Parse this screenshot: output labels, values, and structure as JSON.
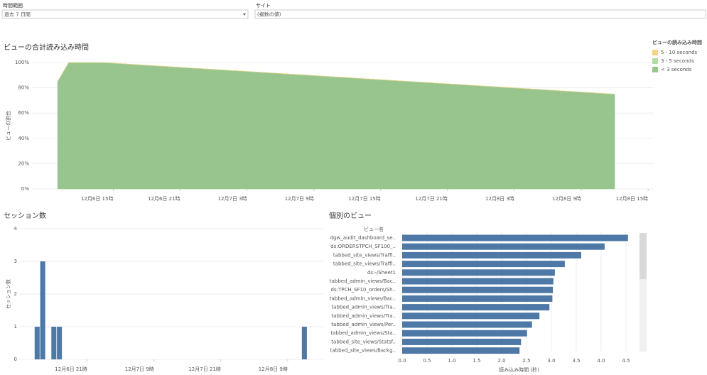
{
  "filters": [
    {
      "label": "時間範囲",
      "value": "過去 7 日間"
    },
    {
      "label": "サイト",
      "value": "(複数の値)"
    }
  ],
  "chart_data": [
    {
      "type": "area",
      "title": "ビューの合計読み込み時間",
      "ylabel": "ビューの割合",
      "x": [
        10,
        11,
        14,
        60
      ],
      "series": [
        {
          "name": "< 3 seconds",
          "color": "#98c58e",
          "values": [
            85,
            100,
            100,
            75
          ]
        },
        {
          "name": "3 - 5 seconds",
          "color": "#b6dba8",
          "values": [
            0,
            0,
            0,
            0
          ]
        },
        {
          "name": "5 - 10 seconds",
          "color": "#f1d581",
          "values": [
            0,
            0,
            0,
            0
          ]
        }
      ],
      "legend_title": "ビューの読み込み時間",
      "legend": "right",
      "xlim": [
        7.7,
        63.5
      ],
      "xticks": [
        {
          "value": 15,
          "label": "12月6日 15時"
        },
        {
          "value": 21,
          "label": "12月6日 21時"
        },
        {
          "value": 27,
          "label": "12月7日 3時"
        },
        {
          "value": 33,
          "label": "12月7日 9時"
        },
        {
          "value": 39,
          "label": "12月7日 15時"
        },
        {
          "value": 45,
          "label": "12月7日 21時"
        },
        {
          "value": 51,
          "label": "12月8日 3時"
        },
        {
          "value": 57,
          "label": "12月8日 9時"
        },
        {
          "value": 63,
          "label": "12月8日 15時"
        }
      ],
      "ylim": [
        0,
        100
      ],
      "yticks": [
        {
          "value": 0,
          "label": "0%"
        },
        {
          "value": 20,
          "label": "20%"
        },
        {
          "value": 40,
          "label": "40%"
        },
        {
          "value": 60,
          "label": "60%"
        },
        {
          "value": 80,
          "label": "80%"
        },
        {
          "value": 100,
          "label": "100%"
        }
      ],
      "grid": true
    },
    {
      "type": "bar",
      "title": "セッション数",
      "ylabel": "セッション数",
      "color": "#4e79a7",
      "x": [
        12,
        13,
        15,
        16,
        60
      ],
      "bar_width": 0.9,
      "values": [
        1,
        3,
        1,
        1,
        1
      ],
      "xlim": [
        8.9,
        63.4
      ],
      "xticks": [
        {
          "value": 21,
          "label": "12月6日 21時"
        },
        {
          "value": 33,
          "label": "12月7日 9時"
        },
        {
          "value": 45,
          "label": "12月7日 21時"
        },
        {
          "value": 57,
          "label": "12月8日 9時"
        }
      ],
      "ylim": [
        0,
        4
      ],
      "yticks": [
        0,
        1,
        2,
        3,
        4
      ],
      "grid": true
    },
    {
      "type": "hbar",
      "title": "個別のビュー",
      "category_header": "ビュー名",
      "xlabel": "読み込み時間 (秒)",
      "color": "#4e79a7",
      "categories": [
        "dgw_audit_dashboard_se..",
        "ds:ORDERSTPCH_SF100_..",
        "tabbed_site_views/Traffi..",
        "tabbed_site_views/Traffi..",
        "ds:-/Sheet1",
        "tabbed_admin_views/Bac..",
        "ds:TPCH_SF10_orders/Sh..",
        "tabbed_admin_views/Bac..",
        "tabbed_admin_views/Tra..",
        "tabbed_admin_views/Tra..",
        "tabbed_admin_views/Per..",
        "tabbed_admin_views/Sta..",
        "tabbed_site_views/Statsf..",
        "tabbed_site_views/Backg.."
      ],
      "values": [
        4.54,
        4.07,
        3.6,
        3.27,
        3.07,
        3.04,
        3.03,
        3.02,
        2.96,
        2.76,
        2.61,
        2.51,
        2.39,
        2.36
      ],
      "xlim": [
        0,
        4.7
      ],
      "xticks": [
        {
          "value": 0,
          "label": "0.0"
        },
        {
          "value": 0.5,
          "label": "0.5"
        },
        {
          "value": 1,
          "label": "1.0"
        },
        {
          "value": 1.5,
          "label": "1.5"
        },
        {
          "value": 2,
          "label": "2.0"
        },
        {
          "value": 2.5,
          "label": "2.5"
        },
        {
          "value": 3,
          "label": "3.0"
        },
        {
          "value": 3.5,
          "label": "3.5"
        },
        {
          "value": 4,
          "label": "4.0"
        },
        {
          "value": 4.5,
          "label": "4.5"
        }
      ],
      "grid": true
    }
  ]
}
